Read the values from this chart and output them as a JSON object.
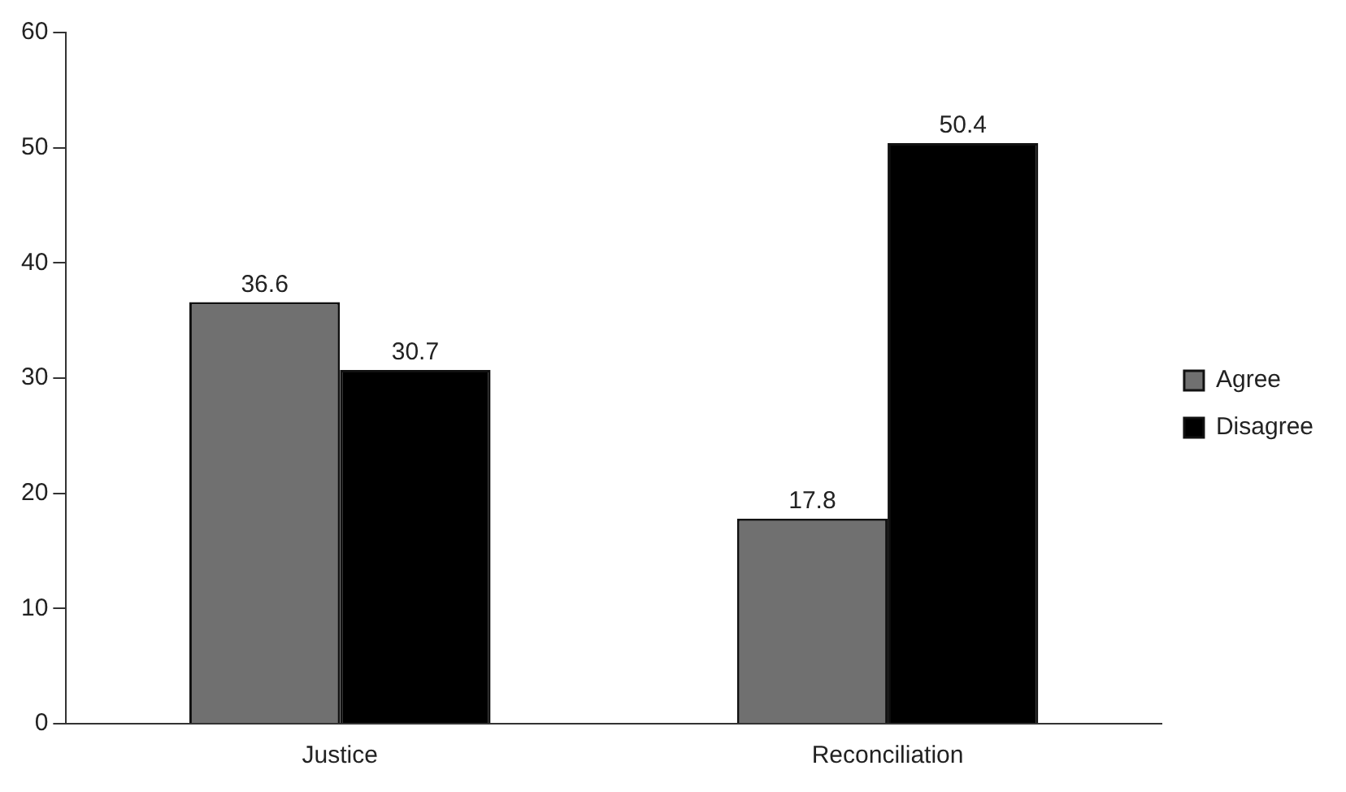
{
  "chart_data": {
    "type": "bar",
    "categories": [
      "Justice",
      "Reconciliation"
    ],
    "series": [
      {
        "name": "Agree",
        "color": "#707070",
        "values": [
          36.6,
          17.8
        ]
      },
      {
        "name": "Disagree",
        "color": "#000000",
        "values": [
          30.7,
          50.4
        ]
      }
    ],
    "ylim": [
      0,
      60
    ],
    "yticks": [
      0,
      10,
      20,
      30,
      40,
      50,
      60
    ],
    "grid": false,
    "legend": "right",
    "data_labels": true
  }
}
